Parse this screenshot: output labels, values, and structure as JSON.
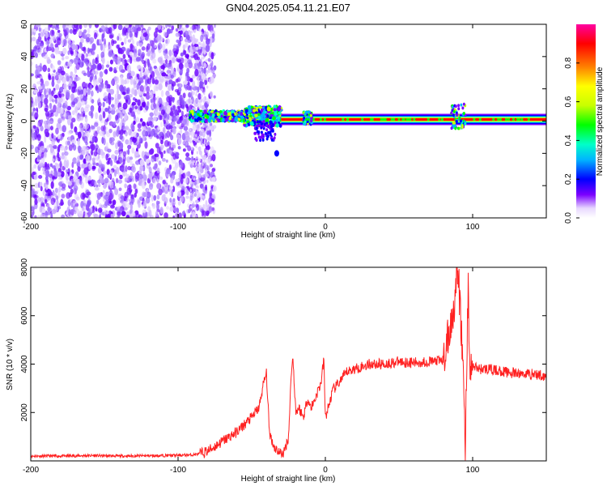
{
  "title": "GN04.2025.054.11.21.E07",
  "chart_data": [
    {
      "type": "heatmap",
      "xlabel": "Height of straight line (km)",
      "ylabel": "Frequency (Hz)",
      "xlim": [
        -200,
        150
      ],
      "ylim": [
        -60,
        60
      ],
      "xticks": [
        "-200",
        "-100",
        "0",
        "100"
      ],
      "yticks": [
        "60",
        "40",
        "20",
        "0",
        "-20",
        "-40",
        "-60"
      ],
      "colorbar": {
        "label": "Normalized spectral amplitude",
        "range": [
          0,
          1
        ],
        "ticks": [
          "0.0",
          "0.2",
          "0.4",
          "0.6",
          "0.8"
        ],
        "colormap": [
          "#ffffff",
          "#e8d8ff",
          "#7b00ff",
          "#0000ff",
          "#00b4ff",
          "#00ffc8",
          "#00ff00",
          "#c8ff00",
          "#ffff00",
          "#ff8000",
          "#ff0000",
          "#ff00a0"
        ]
      },
      "description": "Scattered low-amplitude noise (purple) for heights below about -80 km; a narrow band around 0 Hz from about -90 km to 150 km, broad and noisy from -90 to -30 km, then a strong (red) line near 0 Hz with bumps near -10 km and 90 km."
    },
    {
      "type": "line",
      "xlabel": "Height of straight line (km)",
      "ylabel": "SNR (10 * v/v)",
      "xlim": [
        -200,
        150
      ],
      "ylim": [
        0,
        8000
      ],
      "xticks": [
        "-200",
        "-100",
        "0",
        "100"
      ],
      "yticks": [
        "8000",
        "6000",
        "4000",
        "2000"
      ],
      "color": "#ff2020",
      "series": [
        {
          "x": [
            -200,
            -180,
            -160,
            -140,
            -120,
            -100,
            -90,
            -85,
            -80,
            -75,
            -70,
            -65,
            -60,
            -55,
            -50,
            -45,
            -42,
            -40,
            -38,
            -35,
            -32,
            -30,
            -28,
            -25,
            -23,
            -22,
            -20,
            -18,
            -15,
            -12,
            -10,
            -8,
            -5,
            -3,
            -1,
            0,
            2,
            5,
            10,
            15,
            20,
            25,
            30,
            40,
            50,
            60,
            70,
            80,
            85,
            88,
            90,
            92,
            94,
            95,
            96,
            97,
            98,
            100,
            105,
            110,
            120,
            130,
            140,
            150
          ],
          "y": [
            200,
            200,
            220,
            200,
            210,
            230,
            250,
            300,
            400,
            600,
            800,
            1000,
            1200,
            1500,
            1800,
            2200,
            3200,
            3600,
            1200,
            600,
            400,
            300,
            350,
            1000,
            3800,
            4200,
            2000,
            2200,
            1800,
            2600,
            2200,
            2400,
            2900,
            3200,
            4200,
            1800,
            2200,
            2900,
            3300,
            3700,
            3800,
            3900,
            4000,
            4000,
            4100,
            4050,
            4100,
            4150,
            5500,
            6800,
            7800,
            5800,
            3000,
            500,
            4000,
            7600,
            3500,
            3900,
            3800,
            3800,
            3700,
            3600,
            3600,
            3500
          ]
        }
      ]
    }
  ]
}
